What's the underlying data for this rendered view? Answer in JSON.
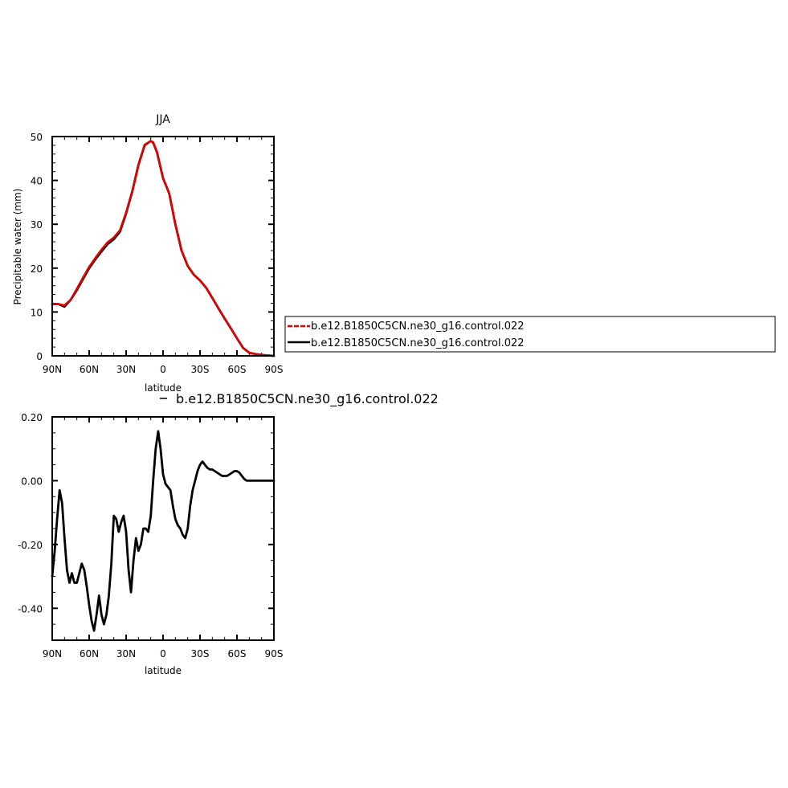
{
  "chart_data": [
    {
      "type": "line",
      "title": "JJA",
      "xlabel": "latitude",
      "ylabel": "Precipitable water  (mm)",
      "xlim": [
        -90,
        90
      ],
      "ylim": [
        0,
        50
      ],
      "x_ticks": [
        -90,
        -60,
        -30,
        0,
        30,
        60,
        90
      ],
      "x_tick_labels": [
        "90N",
        "60N",
        "30N",
        "0",
        "30S",
        "60S",
        "90S"
      ],
      "y_ticks": [
        0,
        10,
        20,
        30,
        40,
        50
      ],
      "y_tick_labels": [
        "0",
        "10",
        "20",
        "30",
        "40",
        "50"
      ],
      "legend": {
        "position": "right",
        "entries": [
          {
            "label": "b.e12.B1850C5CN.ne30_g16.control.022",
            "color": "#e00000",
            "dash": true
          },
          {
            "label": "b.e12.B1850C5CN.ne30_g16.control.022",
            "color": "#000000",
            "dash": false
          }
        ]
      },
      "series": [
        {
          "name": "b.e12.B1850C5CN.ne30_g16.control.022",
          "color": "#000000",
          "x": [
            -90,
            -85,
            -80,
            -75,
            -70,
            -65,
            -60,
            -55,
            -50,
            -45,
            -40,
            -35,
            -30,
            -25,
            -20,
            -15,
            -10,
            -8,
            -5,
            0,
            5,
            10,
            15,
            20,
            25,
            30,
            35,
            40,
            45,
            50,
            55,
            60,
            65,
            70,
            75,
            80,
            85,
            90
          ],
          "y": [
            11.8,
            11.8,
            11.2,
            12.8,
            15.0,
            17.5,
            20.0,
            22.0,
            23.8,
            25.5,
            26.6,
            28.3,
            32.5,
            37.5,
            43.5,
            48.0,
            49.0,
            48.6,
            46.5,
            40.5,
            37.0,
            30.0,
            24.0,
            20.5,
            18.5,
            17.2,
            15.5,
            13.2,
            10.8,
            8.5,
            6.3,
            4.0,
            1.8,
            0.7,
            0.4,
            0.2,
            0.1,
            0.0
          ]
        },
        {
          "name": "b.e12.B1850C5CN.ne30_g16.control.022",
          "color": "#e00000",
          "x": [
            -90,
            -85,
            -80,
            -75,
            -70,
            -65,
            -60,
            -55,
            -50,
            -45,
            -40,
            -35,
            -30,
            -25,
            -20,
            -15,
            -10,
            -8,
            -5,
            0,
            5,
            10,
            15,
            20,
            25,
            30,
            35,
            40,
            45,
            50,
            55,
            60,
            65,
            70,
            75,
            80,
            85,
            90
          ],
          "y": [
            11.8,
            11.8,
            11.5,
            12.8,
            15.3,
            17.8,
            20.3,
            22.3,
            24.2,
            25.9,
            27.0,
            28.6,
            32.7,
            37.6,
            43.6,
            48.1,
            49.0,
            48.7,
            46.5,
            40.5,
            37.0,
            30.0,
            24.0,
            20.5,
            18.5,
            17.2,
            15.5,
            13.2,
            10.8,
            8.5,
            6.3,
            4.0,
            1.8,
            0.7,
            0.4,
            0.2,
            0.1,
            0.0
          ]
        }
      ]
    },
    {
      "type": "line",
      "title": "",
      "xlabel": "latitude",
      "ylabel": "",
      "xlim": [
        -90,
        90
      ],
      "ylim": [
        -0.5,
        0.2
      ],
      "x_ticks": [
        -90,
        -60,
        -30,
        0,
        30,
        60,
        90
      ],
      "x_tick_labels": [
        "90N",
        "60N",
        "30N",
        "0",
        "30S",
        "60S",
        "90S"
      ],
      "y_ticks": [
        -0.4,
        -0.2,
        0.0,
        0.2
      ],
      "y_tick_labels": [
        "-0.40",
        "-0.20",
        "0.00",
        "0.20"
      ],
      "legend": {
        "position": "top",
        "entries": [
          {
            "label": "b.e12.B1850C5CN.ne30_g16.control.022",
            "color": "#000000",
            "dash": false
          }
        ]
      },
      "series": [
        {
          "name": "b.e12.B1850C5CN.ne30_g16.control.022",
          "color": "#000000",
          "x": [
            -90,
            -88,
            -86,
            -84,
            -82,
            -80,
            -78,
            -76,
            -74,
            -72,
            -70,
            -68,
            -66,
            -64,
            -62,
            -60,
            -58,
            -56,
            -54,
            -52,
            -50,
            -48,
            -46,
            -44,
            -42,
            -40,
            -38,
            -36,
            -34,
            -32,
            -30,
            -28,
            -26,
            -24,
            -22,
            -20,
            -18,
            -16,
            -14,
            -12,
            -10,
            -8,
            -6,
            -4,
            -2,
            0,
            2,
            4,
            6,
            8,
            10,
            12,
            14,
            16,
            18,
            20,
            22,
            24,
            26,
            28,
            30,
            32,
            34,
            36,
            38,
            40,
            42,
            44,
            46,
            48,
            50,
            52,
            54,
            56,
            58,
            60,
            62,
            64,
            66,
            68,
            70,
            72,
            74,
            76,
            78,
            80,
            82,
            84,
            86,
            88,
            90
          ],
          "y": [
            -0.3,
            -0.22,
            -0.12,
            -0.03,
            -0.07,
            -0.18,
            -0.28,
            -0.32,
            -0.29,
            -0.32,
            -0.32,
            -0.29,
            -0.26,
            -0.28,
            -0.33,
            -0.39,
            -0.44,
            -0.47,
            -0.42,
            -0.36,
            -0.42,
            -0.45,
            -0.42,
            -0.36,
            -0.26,
            -0.11,
            -0.12,
            -0.16,
            -0.13,
            -0.11,
            -0.16,
            -0.28,
            -0.35,
            -0.25,
            -0.18,
            -0.22,
            -0.2,
            -0.15,
            -0.15,
            -0.16,
            -0.11,
            0.0,
            0.1,
            0.155,
            0.1,
            0.02,
            -0.01,
            -0.02,
            -0.03,
            -0.08,
            -0.12,
            -0.14,
            -0.15,
            -0.17,
            -0.18,
            -0.15,
            -0.08,
            -0.03,
            0.0,
            0.03,
            0.05,
            0.06,
            0.05,
            0.04,
            0.035,
            0.035,
            0.03,
            0.025,
            0.02,
            0.015,
            0.015,
            0.015,
            0.02,
            0.025,
            0.03,
            0.03,
            0.025,
            0.015,
            0.005,
            0.0,
            0.0,
            0.0,
            0.0,
            0.0,
            0.0,
            0.0,
            0.0,
            0.0,
            0.0,
            0.0,
            0.0
          ]
        }
      ]
    }
  ]
}
